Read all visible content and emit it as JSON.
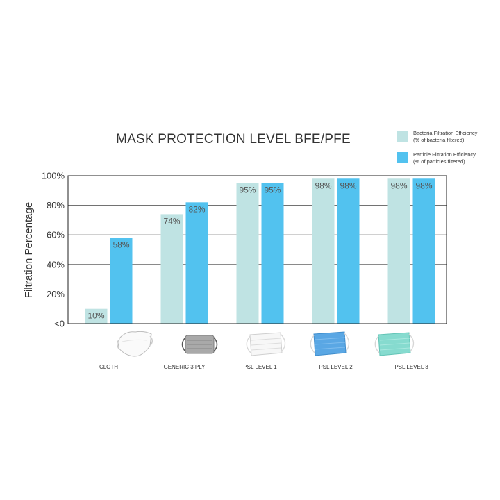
{
  "chart_data": {
    "type": "bar",
    "title": "MASK PROTECTION LEVEL BFE/PFE",
    "ylabel": "Filtration Percentage",
    "ylim": [
      0,
      100
    ],
    "yticks": [
      "<0",
      "20%",
      "40%",
      "60%",
      "80%",
      "100%"
    ],
    "categories": [
      "CLOTH",
      "GENERIC 3 PLY",
      "PSL LEVEL 1",
      "PSL LEVEL 2",
      "PSL LEVEL 3"
    ],
    "series": [
      {
        "name": "Bacteria Filtration Efficiency",
        "subtitle": "(% of bacteria filtered)",
        "color": "#bfe3e3",
        "values": [
          10,
          74,
          95,
          98,
          98
        ],
        "labels": [
          "10%",
          "74%",
          "95%",
          "98%",
          "98%"
        ]
      },
      {
        "name": "Particle Filtration Efficiency",
        "subtitle": "(% of particles filtered)",
        "color": "#52c2ef",
        "values": [
          58,
          82,
          95,
          98,
          98
        ],
        "labels": [
          "58%",
          "82%",
          "95%",
          "98%",
          "98%"
        ]
      }
    ],
    "grid": true,
    "legend_position": "top-right",
    "mask_icons": [
      "cloth-mask-icon",
      "generic-3ply-mask-icon",
      "psl-level1-mask-icon",
      "psl-level2-mask-icon",
      "psl-level3-mask-icon"
    ]
  }
}
